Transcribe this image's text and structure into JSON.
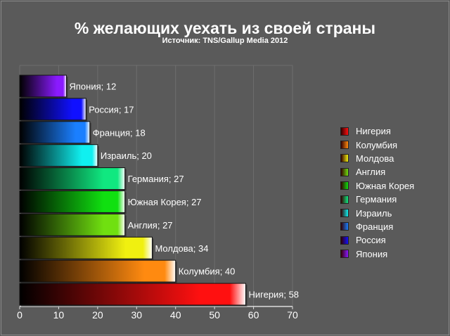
{
  "chart_data": {
    "type": "bar",
    "orientation": "horizontal",
    "title": "% желающих уехать из своей страны",
    "subtitle": "Источник: TNS/Gallup Media 2012",
    "categories": [
      "Япония",
      "Россия",
      "Франция",
      "Израиль",
      "Германия",
      "Южная Корея",
      "Англия",
      "Молдова",
      "Колумбия",
      "Нигерия"
    ],
    "values": [
      12,
      17,
      18,
      20,
      27,
      27,
      27,
      34,
      40,
      58
    ],
    "colors": [
      "#8a1aff",
      "#1010ff",
      "#1a7fff",
      "#10f0f0",
      "#10e880",
      "#10e010",
      "#70e010",
      "#f0f010",
      "#ff8a10",
      "#ff1010"
    ],
    "xlim": [
      0,
      70
    ],
    "xticks": [
      "0",
      "10",
      "20",
      "30",
      "40",
      "50",
      "60",
      "70"
    ],
    "grid": true,
    "data_labels": true,
    "legend_position": "right",
    "legend": [
      "Нигерия",
      "Колумбия",
      "Молдова",
      "Англия",
      "Южная Корея",
      "Германия",
      "Израиль",
      "Франция",
      "Россия",
      "Япония"
    ],
    "background": "#5a5a5a"
  }
}
